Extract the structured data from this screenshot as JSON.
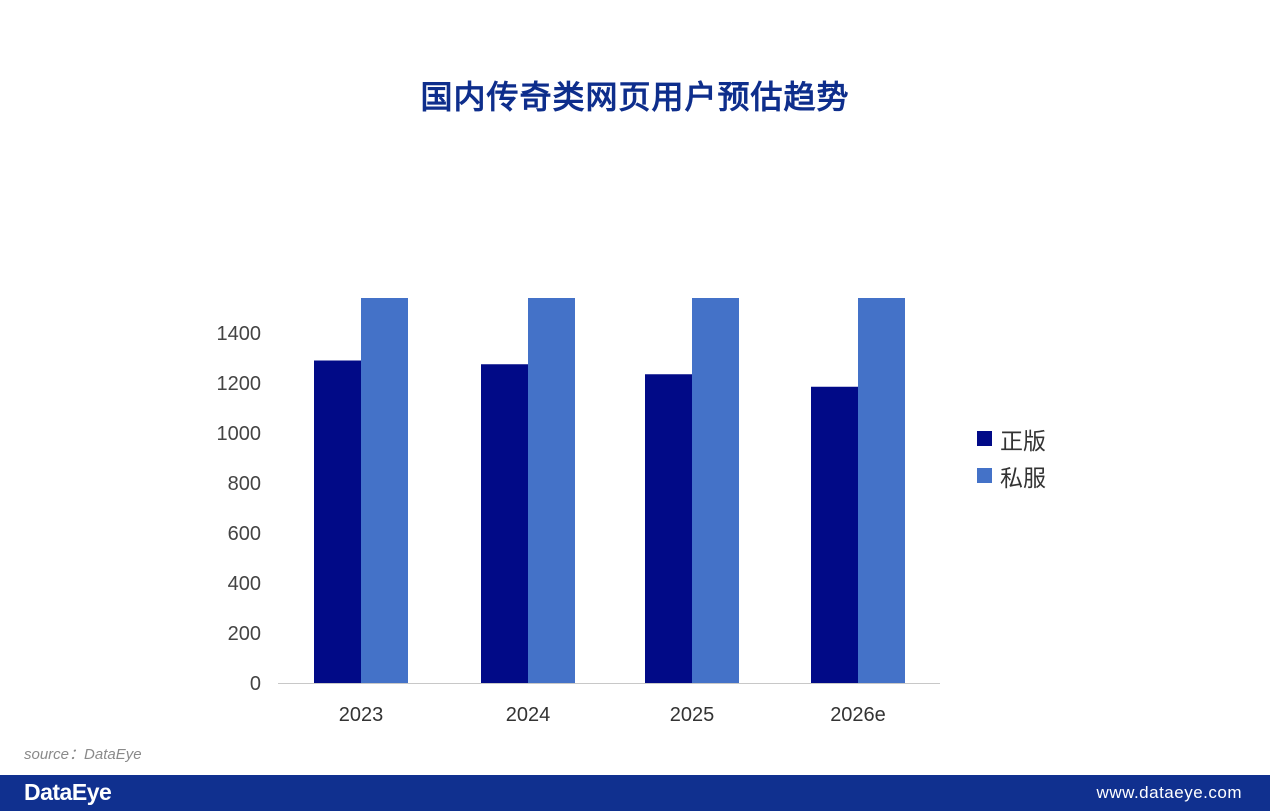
{
  "title": "国内传奇类网页用户预估趋势",
  "source": "source：DataEye",
  "footer": {
    "logo": "DataEye",
    "url": "www.dataeye.com"
  },
  "colors": {
    "series_1": "#010a87",
    "series_2": "#4472c8",
    "title": "#0e2e8c",
    "footer": "#10308f"
  },
  "chart_data": {
    "type": "bar",
    "title": "国内传奇类网页用户预估趋势",
    "categories": [
      "2023",
      "2024",
      "2025",
      "2026e"
    ],
    "series": [
      {
        "name": "正版",
        "values": [
          1290,
          1275,
          1235,
          1185
        ]
      },
      {
        "name": "私服",
        "values": [
          1540,
          1540,
          1540,
          1540
        ]
      }
    ],
    "yticks": [
      "0",
      "200",
      "400",
      "600",
      "800",
      "1000",
      "1200",
      "1400"
    ],
    "ylim": [
      0,
      1550
    ],
    "xlabel": "",
    "ylabel": "",
    "grid": false,
    "legend_position": "right"
  }
}
